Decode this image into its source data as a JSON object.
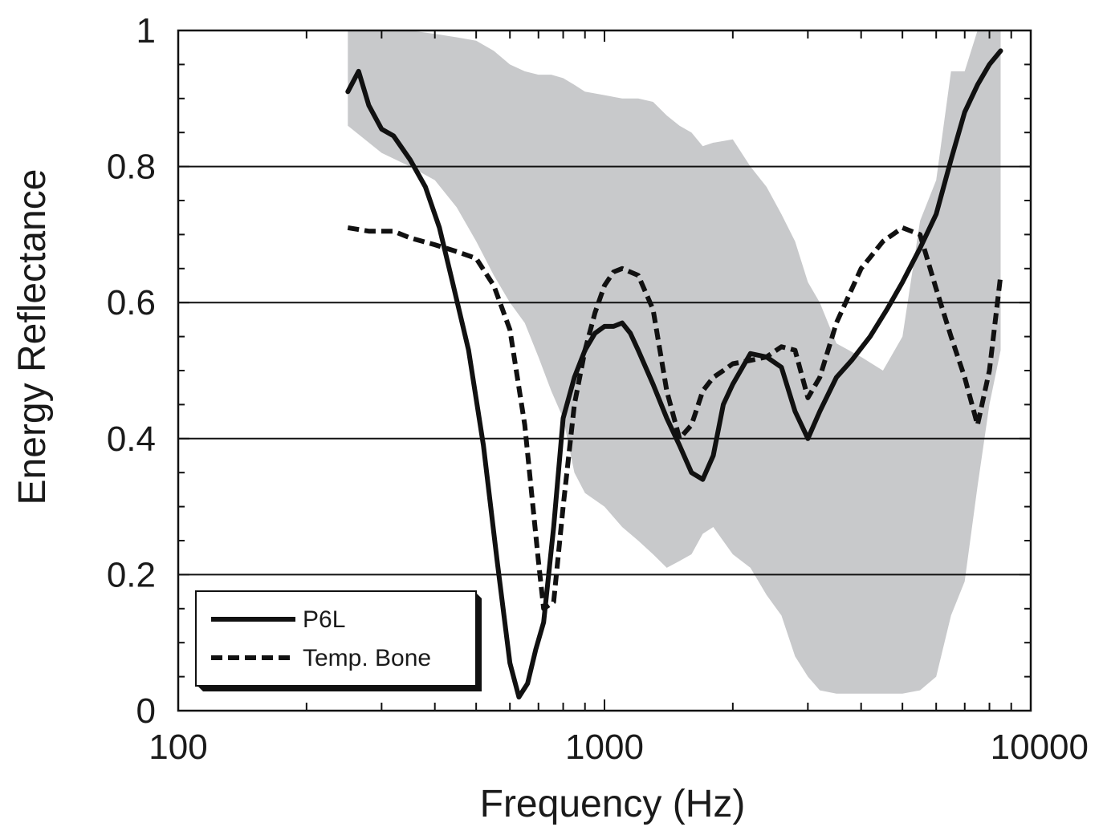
{
  "chart_data": {
    "type": "line",
    "title": "",
    "xlabel": "Frequency (Hz)",
    "ylabel": "Energy Reflectance",
    "xscale": "log",
    "xlim": [
      100,
      10000
    ],
    "ylim": [
      0,
      1
    ],
    "x_ticks": [
      {
        "value": 100,
        "label": "100"
      },
      {
        "value": 1000,
        "label": "1000"
      },
      {
        "value": 10000,
        "label": "10000"
      }
    ],
    "y_ticks": [
      {
        "value": 0,
        "label": "0"
      },
      {
        "value": 0.2,
        "label": "0.2"
      },
      {
        "value": 0.4,
        "label": "0.4"
      },
      {
        "value": 0.6,
        "label": "0.6"
      },
      {
        "value": 0.8,
        "label": "0.8"
      },
      {
        "value": 1,
        "label": "1"
      }
    ],
    "grid": {
      "horizontal": [
        0.2,
        0.4,
        0.6,
        0.8
      ],
      "vertical": false
    },
    "legend": {
      "placement": "bottom-left"
    },
    "band": {
      "color": "#c8c9cb",
      "x": [
        250,
        300,
        350,
        400,
        450,
        500,
        550,
        600,
        650,
        700,
        750,
        800,
        850,
        900,
        1000,
        1100,
        1200,
        1300,
        1400,
        1500,
        1600,
        1700,
        1800,
        2000,
        2200,
        2400,
        2600,
        2800,
        3000,
        3200,
        3500,
        4000,
        4500,
        5000,
        5500,
        6000,
        6500,
        7000,
        7500,
        8000,
        8500
      ],
      "upper": [
        1.0,
        1.0,
        1.0,
        0.995,
        0.99,
        0.985,
        0.97,
        0.95,
        0.94,
        0.935,
        0.935,
        0.93,
        0.92,
        0.91,
        0.905,
        0.9,
        0.9,
        0.895,
        0.875,
        0.86,
        0.85,
        0.83,
        0.835,
        0.84,
        0.8,
        0.77,
        0.73,
        0.69,
        0.63,
        0.6,
        0.54,
        0.52,
        0.5,
        0.55,
        0.72,
        0.78,
        0.94,
        0.94,
        1.0,
        1.0,
        1.0
      ],
      "lower": [
        0.86,
        0.82,
        0.8,
        0.78,
        0.74,
        0.69,
        0.64,
        0.6,
        0.57,
        0.52,
        0.47,
        0.43,
        0.35,
        0.32,
        0.3,
        0.27,
        0.25,
        0.23,
        0.21,
        0.22,
        0.23,
        0.26,
        0.27,
        0.23,
        0.21,
        0.17,
        0.14,
        0.08,
        0.05,
        0.03,
        0.025,
        0.025,
        0.025,
        0.025,
        0.03,
        0.05,
        0.14,
        0.19,
        0.33,
        0.45,
        0.53
      ]
    },
    "series": [
      {
        "name": "P6L",
        "style": "solid",
        "color": "#111111",
        "x": [
          250,
          265,
          280,
          300,
          320,
          350,
          380,
          410,
          440,
          480,
          520,
          560,
          600,
          630,
          660,
          690,
          720,
          760,
          800,
          850,
          900,
          950,
          1000,
          1050,
          1100,
          1150,
          1200,
          1300,
          1400,
          1500,
          1600,
          1700,
          1800,
          1900,
          2000,
          2200,
          2400,
          2600,
          2800,
          3000,
          3200,
          3500,
          3800,
          4200,
          4600,
          5000,
          5500,
          6000,
          6500,
          7000,
          7500,
          8000,
          8500
        ],
        "y": [
          0.91,
          0.94,
          0.89,
          0.855,
          0.845,
          0.81,
          0.77,
          0.71,
          0.63,
          0.53,
          0.39,
          0.22,
          0.07,
          0.02,
          0.04,
          0.09,
          0.13,
          0.27,
          0.43,
          0.49,
          0.53,
          0.555,
          0.565,
          0.565,
          0.57,
          0.555,
          0.53,
          0.48,
          0.43,
          0.39,
          0.35,
          0.34,
          0.375,
          0.45,
          0.48,
          0.525,
          0.52,
          0.505,
          0.44,
          0.4,
          0.44,
          0.49,
          0.515,
          0.55,
          0.59,
          0.63,
          0.68,
          0.73,
          0.81,
          0.88,
          0.92,
          0.95,
          0.97
        ]
      },
      {
        "name": "Temp. Bone",
        "style": "dashed",
        "color": "#111111",
        "x": [
          250,
          280,
          320,
          350,
          400,
          450,
          500,
          550,
          600,
          650,
          700,
          720,
          760,
          800,
          850,
          900,
          950,
          1000,
          1050,
          1100,
          1200,
          1300,
          1400,
          1500,
          1600,
          1700,
          1800,
          1900,
          2000,
          2200,
          2400,
          2600,
          2800,
          3000,
          3200,
          3500,
          4000,
          4500,
          5000,
          5500,
          6000,
          6500,
          7000,
          7500,
          8000,
          8500
        ],
        "y": [
          0.71,
          0.705,
          0.705,
          0.695,
          0.685,
          0.675,
          0.665,
          0.625,
          0.56,
          0.42,
          0.22,
          0.15,
          0.16,
          0.3,
          0.45,
          0.53,
          0.585,
          0.625,
          0.645,
          0.65,
          0.64,
          0.59,
          0.47,
          0.4,
          0.42,
          0.47,
          0.49,
          0.5,
          0.51,
          0.515,
          0.52,
          0.535,
          0.53,
          0.46,
          0.49,
          0.57,
          0.65,
          0.69,
          0.71,
          0.7,
          0.62,
          0.55,
          0.49,
          0.42,
          0.5,
          0.64
        ]
      }
    ]
  }
}
